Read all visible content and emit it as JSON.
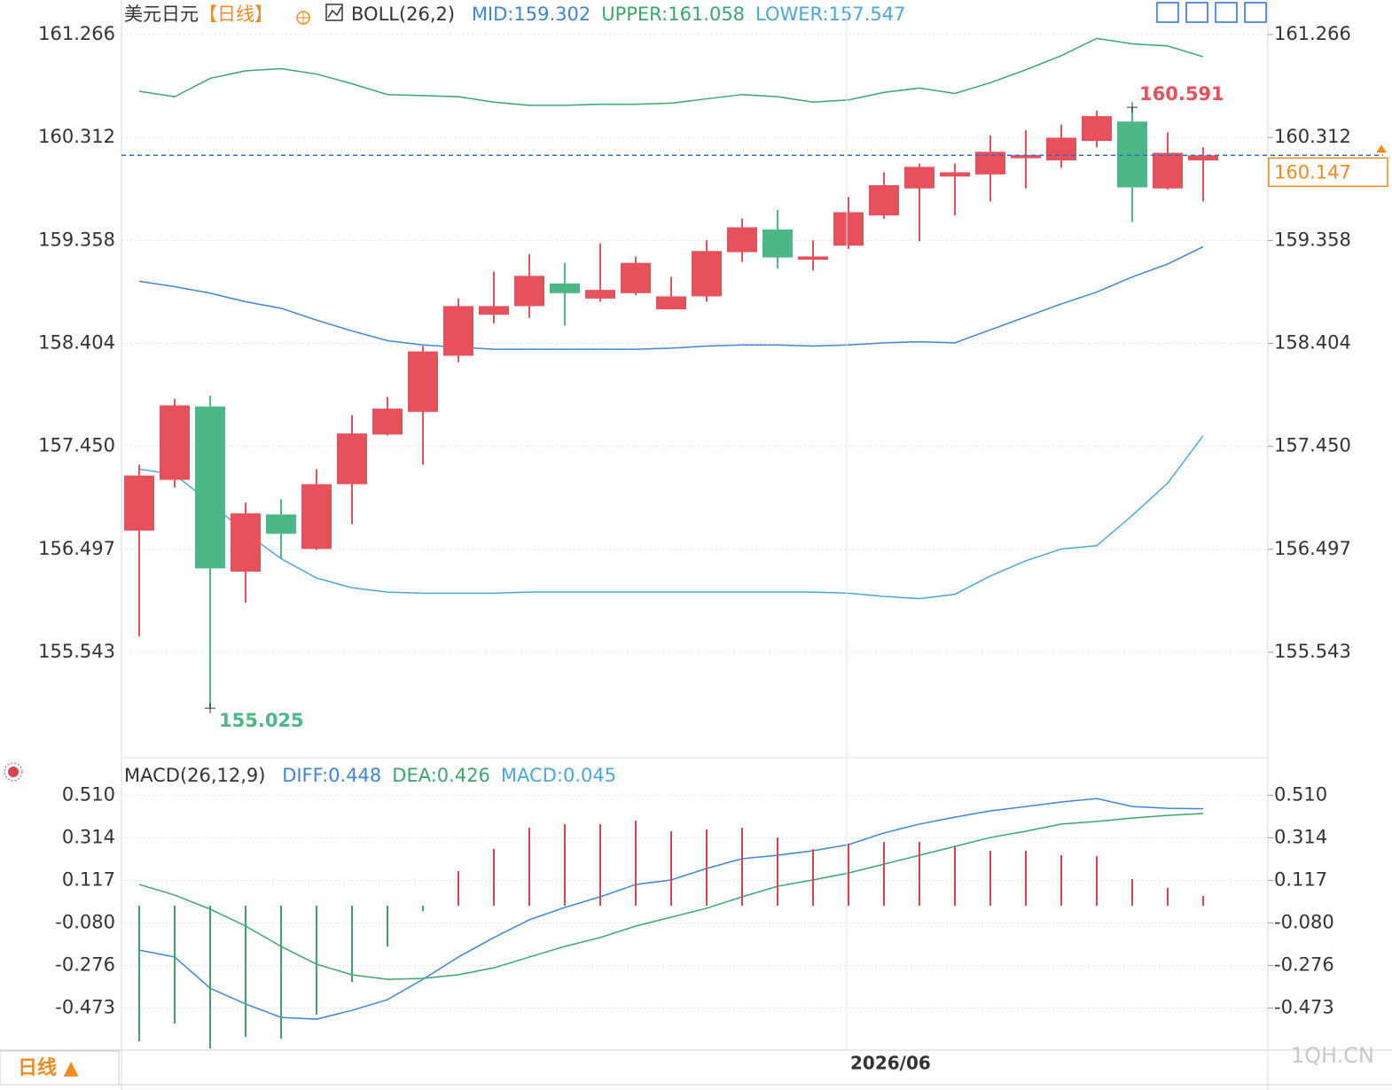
{
  "chart_data": [
    {
      "type": "candlestick",
      "title": "美元日元",
      "subtitle": "【日线】",
      "indicator": "BOLL(26,2)",
      "up_color": "#e8505b",
      "down_color": "#4db887",
      "open": [
        156.67,
        157.14,
        157.82,
        156.29,
        156.82,
        156.5,
        157.1,
        157.56,
        157.77,
        158.29,
        158.67,
        158.75,
        158.96,
        158.82,
        158.87,
        158.72,
        158.84,
        159.25,
        159.46,
        159.18,
        159.31,
        159.59,
        159.84,
        159.95,
        159.97,
        160.12,
        160.1,
        160.28,
        160.46,
        159.84,
        160.1
      ],
      "high": [
        157.28,
        157.89,
        157.92,
        156.93,
        156.96,
        157.24,
        157.74,
        157.91,
        158.38,
        158.82,
        159.07,
        159.23,
        159.15,
        159.33,
        159.21,
        159.02,
        159.36,
        159.56,
        159.64,
        159.36,
        159.76,
        159.99,
        160.07,
        160.07,
        160.33,
        160.38,
        160.43,
        160.56,
        160.591,
        160.36,
        160.22
      ],
      "low": [
        155.69,
        157.07,
        155.025,
        156.0,
        156.41,
        156.49,
        156.73,
        157.55,
        157.28,
        158.23,
        158.59,
        158.64,
        158.57,
        158.79,
        158.85,
        158.72,
        158.79,
        159.16,
        159.1,
        159.08,
        159.28,
        159.56,
        159.35,
        159.59,
        159.72,
        159.84,
        160.03,
        160.22,
        159.53,
        159.83,
        159.72
      ],
      "close": [
        157.18,
        157.83,
        156.32,
        156.83,
        156.64,
        157.1,
        157.57,
        157.8,
        158.33,
        158.75,
        158.75,
        159.03,
        158.87,
        158.9,
        159.15,
        158.84,
        159.26,
        159.48,
        159.2,
        159.21,
        159.62,
        159.87,
        160.04,
        159.99,
        160.18,
        160.15,
        160.31,
        160.51,
        159.85,
        160.17,
        160.147
      ],
      "series": [
        {
          "name": "MID:159.302",
          "color": "#3f86d4",
          "values": [
            158.98,
            158.93,
            158.87,
            158.79,
            158.73,
            158.62,
            158.52,
            158.43,
            158.39,
            158.37,
            158.35,
            158.35,
            158.35,
            158.35,
            158.35,
            158.36,
            158.38,
            158.39,
            158.39,
            158.38,
            158.39,
            158.41,
            158.42,
            158.41,
            158.53,
            158.65,
            158.77,
            158.88,
            159.02,
            159.14,
            159.3
          ]
        },
        {
          "name": "UPPER:161.058",
          "color": "#3aa76d",
          "values": [
            160.74,
            160.69,
            160.86,
            160.93,
            160.95,
            160.9,
            160.81,
            160.71,
            160.7,
            160.69,
            160.64,
            160.61,
            160.61,
            160.62,
            160.62,
            160.63,
            160.67,
            160.71,
            160.69,
            160.64,
            160.66,
            160.73,
            160.77,
            160.72,
            160.82,
            160.94,
            161.07,
            161.23,
            161.18,
            161.16,
            161.06
          ]
        },
        {
          "name": "LOWER:157.547",
          "color": "#4aa8d8",
          "values": [
            157.24,
            157.19,
            156.93,
            156.65,
            156.41,
            156.23,
            156.14,
            156.1,
            156.09,
            156.09,
            156.09,
            156.1,
            156.1,
            156.1,
            156.1,
            156.1,
            156.1,
            156.1,
            156.1,
            156.1,
            156.09,
            156.06,
            156.04,
            156.08,
            156.25,
            156.39,
            156.5,
            156.53,
            156.81,
            157.11,
            157.55
          ]
        }
      ],
      "last_price": 160.147,
      "last_price_color": "#f08a24",
      "ylim": [
        154.566,
        161.586
      ],
      "yticks": [
        161.266,
        160.312,
        159.358,
        158.404,
        {
          "value": 157.45,
          "label": "157.450"
        },
        156.497,
        155.543
      ],
      "grid": true
    },
    {
      "type": "macd",
      "title": "MACD(26,12,9)",
      "categories": [
        null,
        null,
        null,
        null,
        null,
        null,
        null,
        null,
        null,
        null,
        null,
        null,
        null,
        null,
        null,
        null,
        null,
        null,
        null,
        null,
        "2026/06",
        null,
        null,
        null,
        null,
        null,
        null,
        null,
        null,
        null,
        null
      ],
      "series": [
        {
          "name": "DIFF:0.448",
          "type": "line",
          "color": "#3f86d4",
          "values": [
            -0.205,
            -0.237,
            -0.381,
            -0.454,
            -0.516,
            -0.524,
            -0.483,
            -0.434,
            -0.34,
            -0.237,
            -0.147,
            -0.065,
            -0.008,
            0.041,
            0.098,
            0.119,
            0.172,
            0.217,
            0.233,
            0.254,
            0.282,
            0.336,
            0.377,
            0.409,
            0.438,
            0.458,
            0.479,
            0.495,
            0.458,
            0.45,
            0.448
          ]
        },
        {
          "name": "DEA:0.426",
          "type": "line",
          "color": "#3aa76d",
          "values": [
            0.098,
            0.049,
            -0.016,
            -0.094,
            -0.188,
            -0.27,
            -0.319,
            -0.34,
            -0.336,
            -0.319,
            -0.287,
            -0.237,
            -0.188,
            -0.147,
            -0.094,
            -0.053,
            -0.012,
            0.041,
            0.09,
            0.119,
            0.151,
            0.192,
            0.233,
            0.274,
            0.315,
            0.344,
            0.377,
            0.389,
            0.405,
            0.417,
            0.426
          ]
        },
        {
          "name": "MACD:0.045",
          "type": "bar",
          "color": "#4aa8d8",
          "up_color": "#d9434f",
          "down_color": "#3aa76d",
          "values": [
            -0.626,
            -0.544,
            -0.659,
            -0.606,
            -0.614,
            -0.503,
            -0.352,
            -0.188,
            -0.025,
            0.16,
            0.262,
            0.36,
            0.377,
            0.377,
            0.393,
            0.344,
            0.352,
            0.36,
            0.315,
            0.262,
            0.287,
            0.295,
            0.295,
            0.274,
            0.254,
            0.254,
            0.233,
            0.229,
            0.123,
            0.082,
            0.045
          ]
        }
      ],
      "ylim": [
        -0.667,
        0.655
      ],
      "yticks": [
        {
          "value": 0.51,
          "label": "0.510"
        },
        0.314,
        0.117,
        {
          "value": -0.08,
          "label": "-0.080"
        },
        -0.276,
        -0.473
      ],
      "grid": true
    }
  ],
  "footer": {
    "period": "日线 ▲",
    "watermark": "1QH.CN"
  }
}
